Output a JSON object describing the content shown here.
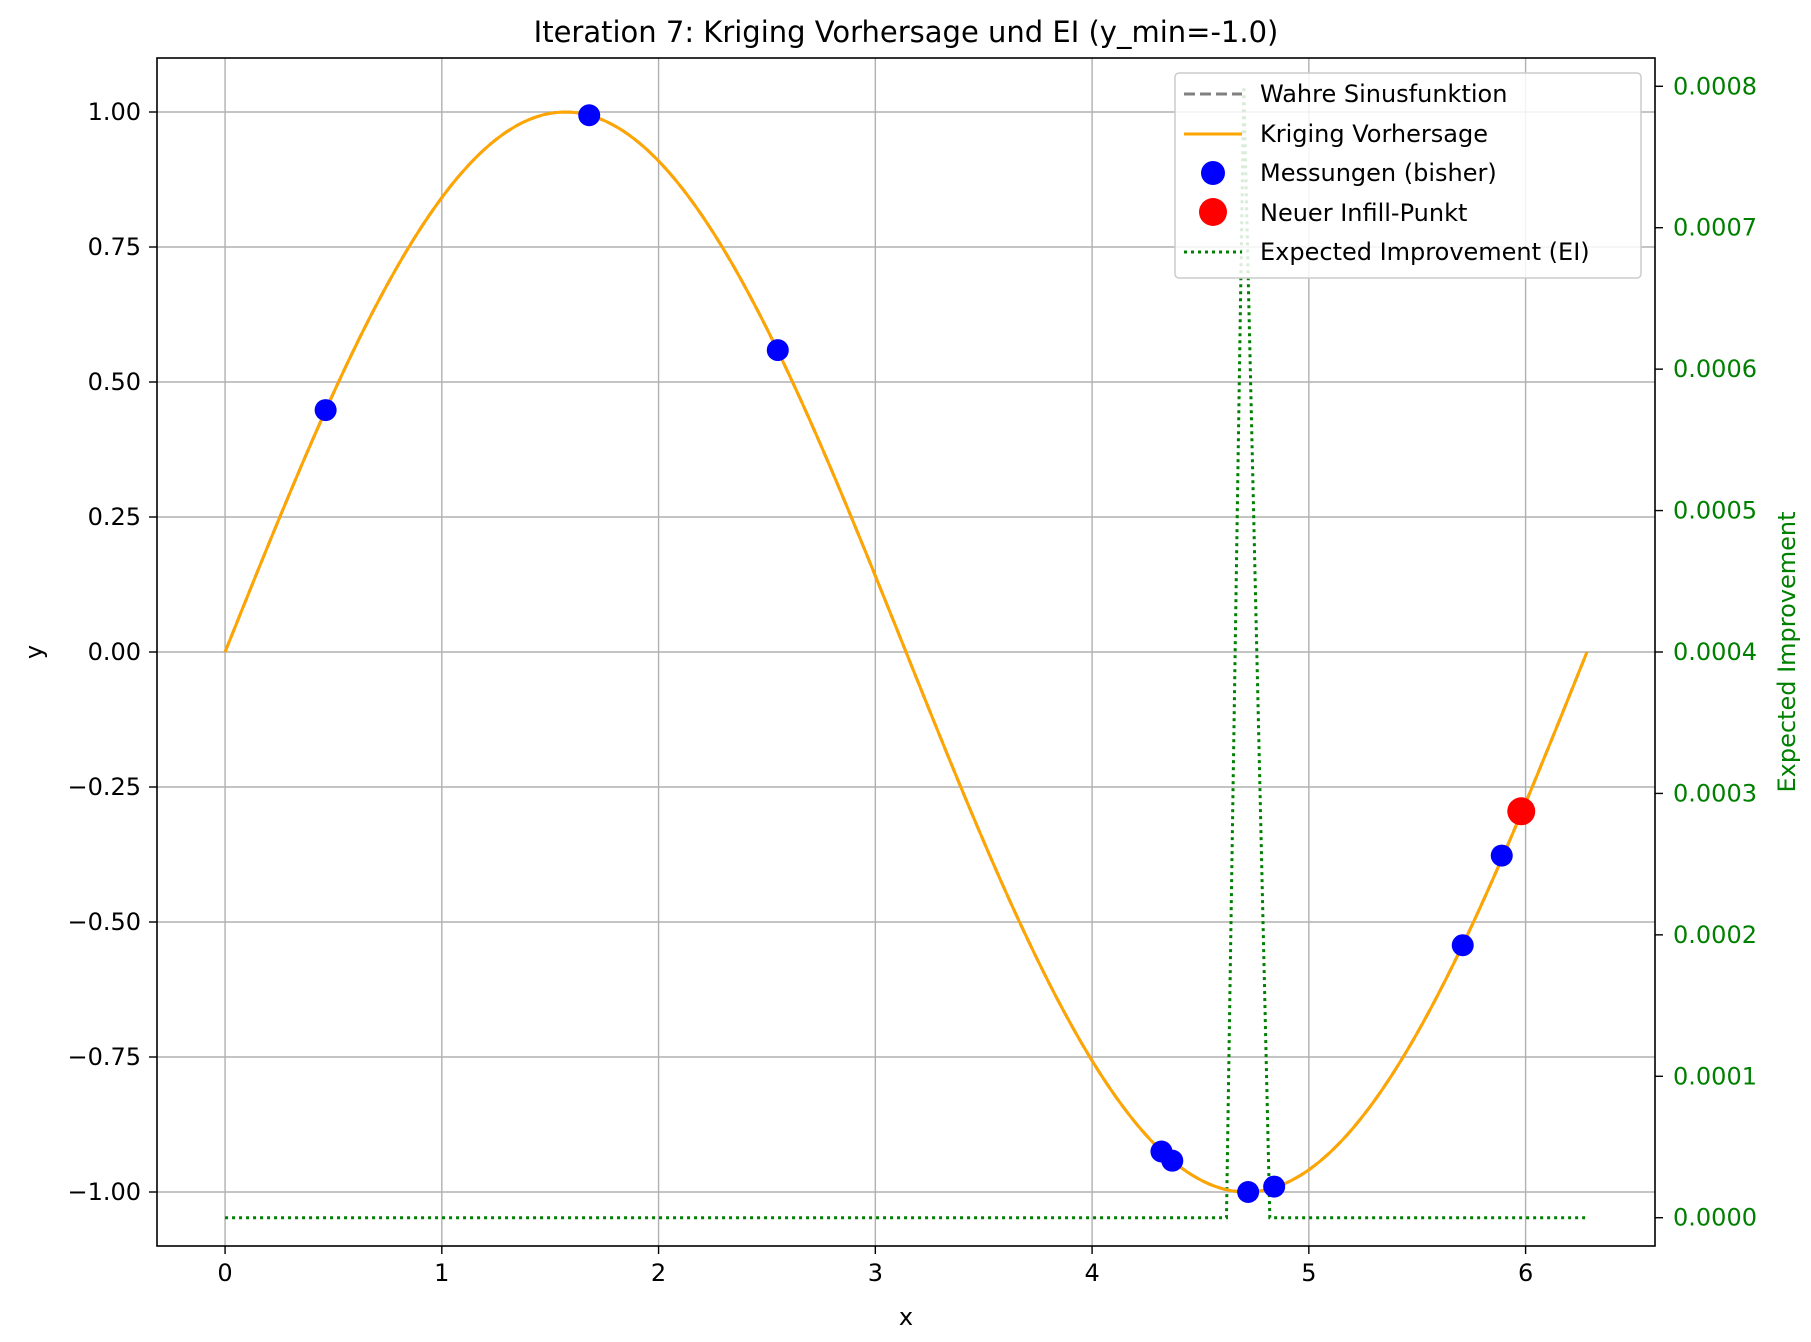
{
  "chart_data": {
    "type": "line",
    "title": "Iteration 7: Kriging Vorhersage und EI (y_min=-1.0)",
    "xlabel": "x",
    "ylabel": "y",
    "y2label": "Expected Improvement",
    "xlim": [
      -0.314,
      6.597
    ],
    "ylim": [
      -1.1,
      1.1
    ],
    "y2lim": [
      -2e-05,
      0.00082
    ],
    "x_ticks": [
      0,
      1,
      2,
      3,
      4,
      5,
      6
    ],
    "x_tick_labels": [
      "0",
      "1",
      "2",
      "3",
      "4",
      "5",
      "6"
    ],
    "y_ticks": [
      1.0,
      0.75,
      0.5,
      0.25,
      0.0,
      -0.25,
      -0.5,
      -0.75,
      -1.0
    ],
    "y_tick_labels": [
      "1.00",
      "0.75",
      "0.50",
      "0.25",
      "0.00",
      "−0.25",
      "−0.50",
      "−0.75",
      "−1.00"
    ],
    "y2_ticks": [
      0.0008,
      0.0007,
      0.0006,
      0.0005,
      0.0004,
      0.0003,
      0.0002,
      0.0001,
      0.0
    ],
    "y2_tick_labels": [
      "0.0008",
      "0.0007",
      "0.0006",
      "0.0005",
      "0.0004",
      "0.0003",
      "0.0002",
      "0.0001",
      "0.0000"
    ],
    "grid": true,
    "legend_position": "top-right",
    "colors": {
      "true_function": "#808080",
      "kriging": "#FFA500",
      "measurements": "#0000FF",
      "infill": "#FF0000",
      "ei": "#008000"
    },
    "series": [
      {
        "name": "Wahre Sinusfunktion",
        "style": "dashed",
        "function": "sin(x)",
        "x_range": [
          0,
          6.283
        ]
      },
      {
        "name": "Kriging Vorhersage",
        "style": "solid",
        "function": "sin(x)",
        "x_range": [
          0,
          6.283
        ]
      },
      {
        "name": "Messungen (bisher)",
        "style": "markers",
        "points": [
          {
            "x": 0.464,
            "y": 0.448
          },
          {
            "x": 1.68,
            "y": 0.994
          },
          {
            "x": 2.55,
            "y": 0.559
          },
          {
            "x": 4.32,
            "y": -0.925
          },
          {
            "x": 4.37,
            "y": -0.942
          },
          {
            "x": 4.72,
            "y": -1.0
          },
          {
            "x": 4.84,
            "y": -0.99
          },
          {
            "x": 5.71,
            "y": -0.543
          },
          {
            "x": 5.89,
            "y": -0.377
          }
        ]
      },
      {
        "name": "Neuer Infill-Punkt",
        "style": "markers",
        "points": [
          {
            "x": 5.98,
            "y": -0.295
          }
        ]
      },
      {
        "name": "Expected Improvement (EI)",
        "style": "dotted",
        "axis": "right",
        "points": [
          {
            "x": 0.0,
            "y": 0.0
          },
          {
            "x": 4.62,
            "y": 0.0
          },
          {
            "x": 4.7,
            "y": 0.0008
          },
          {
            "x": 4.82,
            "y": 0.0
          },
          {
            "x": 6.283,
            "y": 0.0
          }
        ]
      }
    ]
  }
}
